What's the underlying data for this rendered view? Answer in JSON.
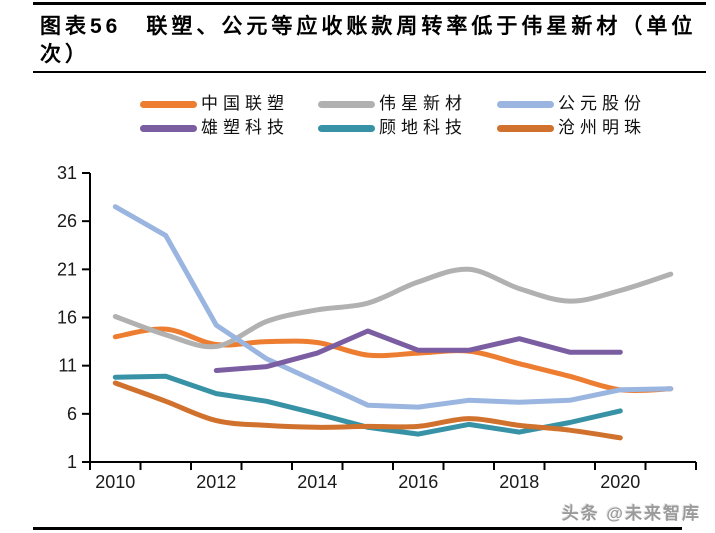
{
  "document": {
    "title_line1": "图表56　联塑、公元等应收账款周转率低于伟星新材（单位",
    "title_line2": "次）",
    "watermark": "头条 @未来智库"
  },
  "legend": {
    "items": [
      {
        "label": "中国联塑",
        "color": "#ED7D31"
      },
      {
        "label": "伟星新材",
        "color": "#B1B1B1"
      },
      {
        "label": "公元股份",
        "color": "#9AB5DF"
      },
      {
        "label": "雄塑科技",
        "color": "#7B5DA2"
      },
      {
        "label": "顾地科技",
        "color": "#3792A6"
      },
      {
        "label": "沧州明珠",
        "color": "#D0722D"
      }
    ]
  },
  "chart_data": {
    "type": "line",
    "title": "联塑、公元等应收账款周转率低于伟星新材",
    "unit": "次",
    "x_years": [
      2010,
      2011,
      2012,
      2013,
      2014,
      2015,
      2016,
      2017,
      2018,
      2019,
      2020,
      2021
    ],
    "x_tick_labels": [
      "2010",
      "2012",
      "2014",
      "2016",
      "2018",
      "2020"
    ],
    "y_ticks": [
      1,
      6,
      11,
      16,
      21,
      26,
      31
    ],
    "ylim": [
      1,
      31
    ],
    "grid": false,
    "legend_position": "top",
    "axis_color": "#000000",
    "series": [
      {
        "name": "中国联塑",
        "color": "#ED7D31",
        "smooth": true,
        "start_year": 2010,
        "values": [
          14.0,
          14.8,
          13.2,
          13.5,
          13.4,
          12.1,
          12.3,
          12.5,
          11.2,
          9.9,
          8.5,
          8.6
        ]
      },
      {
        "name": "伟星新材",
        "color": "#B1B1B1",
        "smooth": true,
        "start_year": 2010,
        "values": [
          16.1,
          14.2,
          13.0,
          15.6,
          16.8,
          17.5,
          19.7,
          21.0,
          19.0,
          17.7,
          18.8,
          20.5
        ]
      },
      {
        "name": "公元股份",
        "color": "#9AB5DF",
        "smooth": false,
        "start_year": 2010,
        "values": [
          27.5,
          24.5,
          15.2,
          11.7,
          9.3,
          6.9,
          6.7,
          7.4,
          7.2,
          7.4,
          8.5,
          8.6
        ]
      },
      {
        "name": "雄塑科技",
        "color": "#7B5DA2",
        "smooth": false,
        "start_year": 2012,
        "values": [
          10.5,
          10.9,
          12.3,
          14.6,
          12.6,
          12.6,
          13.8,
          12.4,
          12.4
        ]
      },
      {
        "name": "顾地科技",
        "color": "#3792A6",
        "smooth": false,
        "start_year": 2010,
        "values": [
          9.8,
          9.9,
          8.1,
          7.3,
          6.0,
          4.6,
          3.9,
          4.9,
          4.1,
          5.1,
          6.3
        ]
      },
      {
        "name": "沧州明珠",
        "color": "#D0722D",
        "smooth": true,
        "start_year": 2010,
        "values": [
          9.2,
          7.3,
          5.3,
          4.8,
          4.6,
          4.7,
          4.7,
          5.5,
          4.8,
          4.3,
          3.5
        ]
      }
    ]
  }
}
